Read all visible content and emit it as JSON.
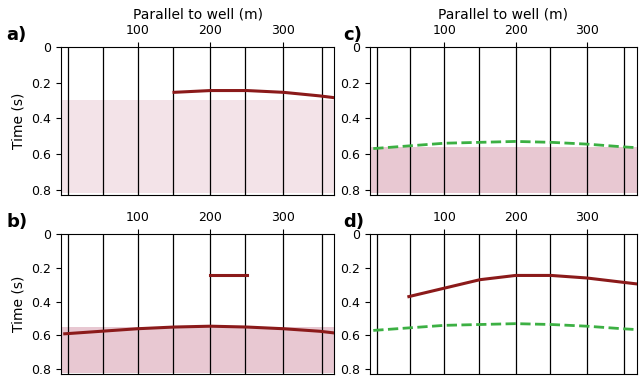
{
  "chart_data": [
    {
      "type": "wiggle",
      "title": "a)",
      "xlabel": "Parallel to well (m)",
      "ylabel": "Time (s)",
      "xlim": [
        -5,
        370
      ],
      "ylim": [
        0,
        0.83
      ],
      "xticks": [
        100,
        200,
        300
      ],
      "yticks": [
        0,
        0.2,
        0.4,
        0.6,
        0.8
      ],
      "series": [
        {
          "type": "band",
          "color": "#f3e3e8",
          "values": [
            0.3,
            0.82
          ]
        },
        {
          "type": "trace",
          "color": "#000000",
          "x": [
            5,
            52,
            100,
            148,
            200,
            248,
            300,
            353
          ]
        },
        {
          "type": "line",
          "color": "#8b1a1a",
          "x": [
            150,
            200,
            250,
            300,
            350,
            370
          ],
          "values": [
            0.255,
            0.245,
            0.245,
            0.255,
            0.275,
            0.285
          ]
        }
      ]
    },
    {
      "type": "wiggle",
      "title": "b)",
      "ylabel": "Time (s)",
      "xlim": [
        -5,
        370
      ],
      "ylim": [
        0,
        0.83
      ],
      "xticks": [
        100,
        200,
        300
      ],
      "yticks": [
        0,
        0.2,
        0.4,
        0.6,
        0.8
      ],
      "series": [
        {
          "type": "band",
          "color": "#e8c8d2",
          "values": [
            0.55,
            0.82
          ]
        },
        {
          "type": "trace",
          "color": "#000000",
          "x": [
            5,
            52,
            100,
            148,
            200,
            248,
            300,
            353
          ]
        },
        {
          "type": "line",
          "color": "#8b1a1a",
          "x": [
            200,
            250
          ],
          "values": [
            0.245,
            0.245
          ]
        },
        {
          "type": "line",
          "color": "#8b1a1a",
          "x": [
            0,
            50,
            100,
            150,
            200,
            250,
            300,
            350,
            370
          ],
          "values": [
            0.59,
            0.575,
            0.56,
            0.55,
            0.545,
            0.55,
            0.56,
            0.575,
            0.585
          ]
        }
      ]
    },
    {
      "type": "wiggle",
      "title": "c)",
      "xlabel": "Parallel to well (m)",
      "xlim": [
        -5,
        370
      ],
      "ylim": [
        0,
        0.83
      ],
      "xticks": [
        100,
        200,
        300
      ],
      "yticks": [
        0,
        0.2,
        0.4,
        0.6,
        0.8
      ],
      "series": [
        {
          "type": "band",
          "color": "#e8c8d2",
          "values": [
            0.56,
            0.82
          ]
        },
        {
          "type": "trace",
          "color": "#000000",
          "x": [
            5,
            52,
            100,
            148,
            200,
            248,
            300,
            353
          ]
        },
        {
          "type": "line",
          "color": "#3cb043",
          "line_style": "dashed",
          "x": [
            0,
            50,
            100,
            150,
            200,
            250,
            300,
            350,
            370
          ],
          "values": [
            0.57,
            0.555,
            0.54,
            0.535,
            0.53,
            0.535,
            0.545,
            0.56,
            0.565
          ]
        }
      ]
    },
    {
      "type": "wiggle",
      "title": "d)",
      "xlim": [
        -5,
        370
      ],
      "ylim": [
        0,
        0.83
      ],
      "xticks": [
        100,
        200,
        300
      ],
      "yticks": [
        0,
        0.2,
        0.4,
        0.6,
        0.8
      ],
      "series": [
        {
          "type": "trace",
          "color": "#000000",
          "x": [
            5,
            52,
            100,
            148,
            200,
            248,
            300,
            353
          ]
        },
        {
          "type": "line",
          "color": "#8b1a1a",
          "x": [
            50,
            100,
            150,
            200,
            250,
            300,
            350,
            370
          ],
          "values": [
            0.37,
            0.32,
            0.27,
            0.245,
            0.245,
            0.26,
            0.285,
            0.295
          ]
        },
        {
          "type": "line",
          "color": "#3cb043",
          "line_style": "dashed",
          "x": [
            0,
            50,
            100,
            150,
            200,
            250,
            300,
            350,
            370
          ],
          "values": [
            0.57,
            0.555,
            0.54,
            0.535,
            0.53,
            0.535,
            0.545,
            0.56,
            0.565
          ]
        }
      ]
    }
  ]
}
